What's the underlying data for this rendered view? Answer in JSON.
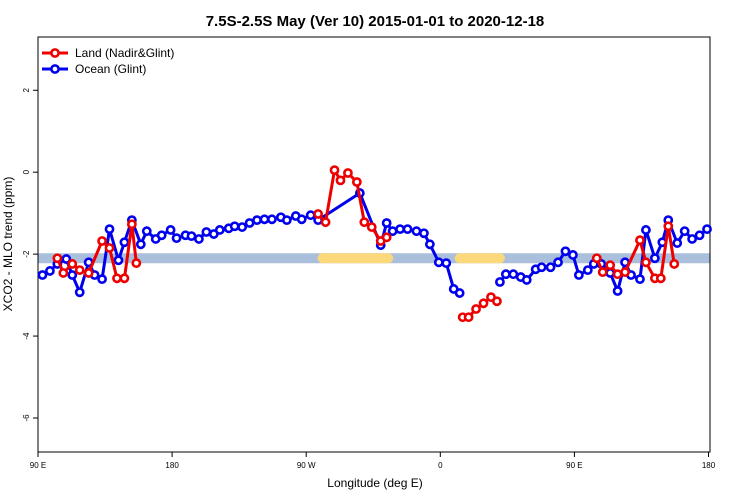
{
  "chart_data": {
    "type": "line",
    "title": "7.5S-2.5S May (Ver 10)   2015-01-01 to 2020-12-18",
    "x_label": "Longitude (deg E)",
    "y_label": "XCO2 - MLO trend (ppm)",
    "xlim": [
      90,
      541
    ],
    "ylim": [
      -6.83,
      3.3
    ],
    "xticks": [
      {
        "value": 90,
        "label": "90 E"
      },
      {
        "value": 180,
        "label": "180"
      },
      {
        "value": 270,
        "label": "90 W"
      },
      {
        "value": 360,
        "label": "0"
      },
      {
        "value": 450,
        "label": "90 E"
      },
      {
        "value": 540,
        "label": "180"
      }
    ],
    "yticks": [
      2,
      0,
      -2,
      -4,
      -6
    ],
    "legend": "top-left",
    "band": {
      "y": -2.1,
      "color": "#a9bfdc",
      "segments": [
        {
          "x": [
            281,
            325
          ],
          "color": "#fbd87a"
        },
        {
          "x": [
            373,
            400
          ],
          "color": "#fbd87a"
        }
      ]
    },
    "series": [
      {
        "name": "Land (Nadir&Glint)",
        "color": "#ee0000",
        "x": [
          103,
          107,
          113,
          118,
          124,
          133,
          138,
          143,
          148,
          153,
          156,
          237,
          278,
          283,
          289,
          293,
          298,
          304,
          309,
          314,
          320,
          324,
          360,
          375,
          379,
          384,
          389,
          394,
          398,
          435,
          465,
          469,
          474,
          479,
          484,
          494,
          498,
          504,
          508,
          513,
          517
        ],
        "values": [
          -2.1,
          -2.46,
          -2.24,
          -2.39,
          -2.46,
          -1.68,
          -1.85,
          -2.59,
          -2.59,
          -1.27,
          -2.22,
          null,
          -1.02,
          -1.22,
          0.05,
          -0.2,
          -0.02,
          -0.24,
          -1.22,
          -1.34,
          -1.68,
          -1.59,
          null,
          -3.54,
          -3.54,
          -3.34,
          -3.2,
          -3.05,
          -3.15,
          null,
          -2.1,
          -2.44,
          -2.27,
          -2.49,
          -2.44,
          -1.66,
          -2.2,
          -2.59,
          -2.59,
          -1.32,
          -2.24
        ]
      },
      {
        "name": "Ocean (Glint)",
        "color": "#0000ee",
        "x": [
          93,
          98,
          103,
          109,
          113,
          118,
          124,
          128,
          133,
          138,
          144,
          148,
          153,
          159,
          163,
          169,
          173,
          179,
          183,
          189,
          193,
          198,
          203,
          208,
          212,
          218,
          222,
          227,
          232,
          237,
          242,
          247,
          253,
          257,
          263,
          267,
          273,
          278,
          306,
          320,
          324,
          328,
          333,
          338,
          344,
          349,
          353,
          359,
          364,
          369,
          373,
          386,
          400,
          404,
          409,
          414,
          418,
          424,
          428,
          434,
          439,
          444,
          449,
          453,
          459,
          463,
          468,
          474,
          479,
          484,
          488,
          494,
          498,
          504,
          509,
          513,
          519,
          524,
          529,
          534,
          539
        ],
        "values": [
          -2.51,
          -2.41,
          -2.24,
          -2.12,
          -2.51,
          -2.93,
          -2.2,
          -2.51,
          -2.61,
          -1.39,
          -2.15,
          -1.71,
          -1.17,
          -1.76,
          -1.44,
          -1.63,
          -1.54,
          -1.41,
          -1.61,
          -1.54,
          -1.56,
          -1.63,
          -1.46,
          -1.51,
          -1.41,
          -1.37,
          -1.32,
          -1.34,
          -1.24,
          -1.17,
          -1.15,
          -1.15,
          -1.1,
          -1.17,
          -1.07,
          -1.15,
          -1.05,
          -1.17,
          -0.51,
          -1.78,
          -1.24,
          -1.44,
          -1.39,
          -1.39,
          -1.44,
          -1.49,
          -1.76,
          -2.2,
          -2.22,
          -2.85,
          -2.95,
          null,
          -2.68,
          -2.49,
          -2.49,
          -2.56,
          -2.63,
          -2.37,
          -2.32,
          -2.32,
          -2.2,
          -1.93,
          -2.02,
          -2.51,
          -2.39,
          -2.24,
          -2.24,
          -2.46,
          -2.9,
          -2.2,
          -2.51,
          -2.61,
          -1.41,
          -2.1,
          -1.71,
          -1.17,
          -1.73,
          -1.44,
          -1.63,
          -1.54,
          -1.39
        ]
      }
    ]
  }
}
